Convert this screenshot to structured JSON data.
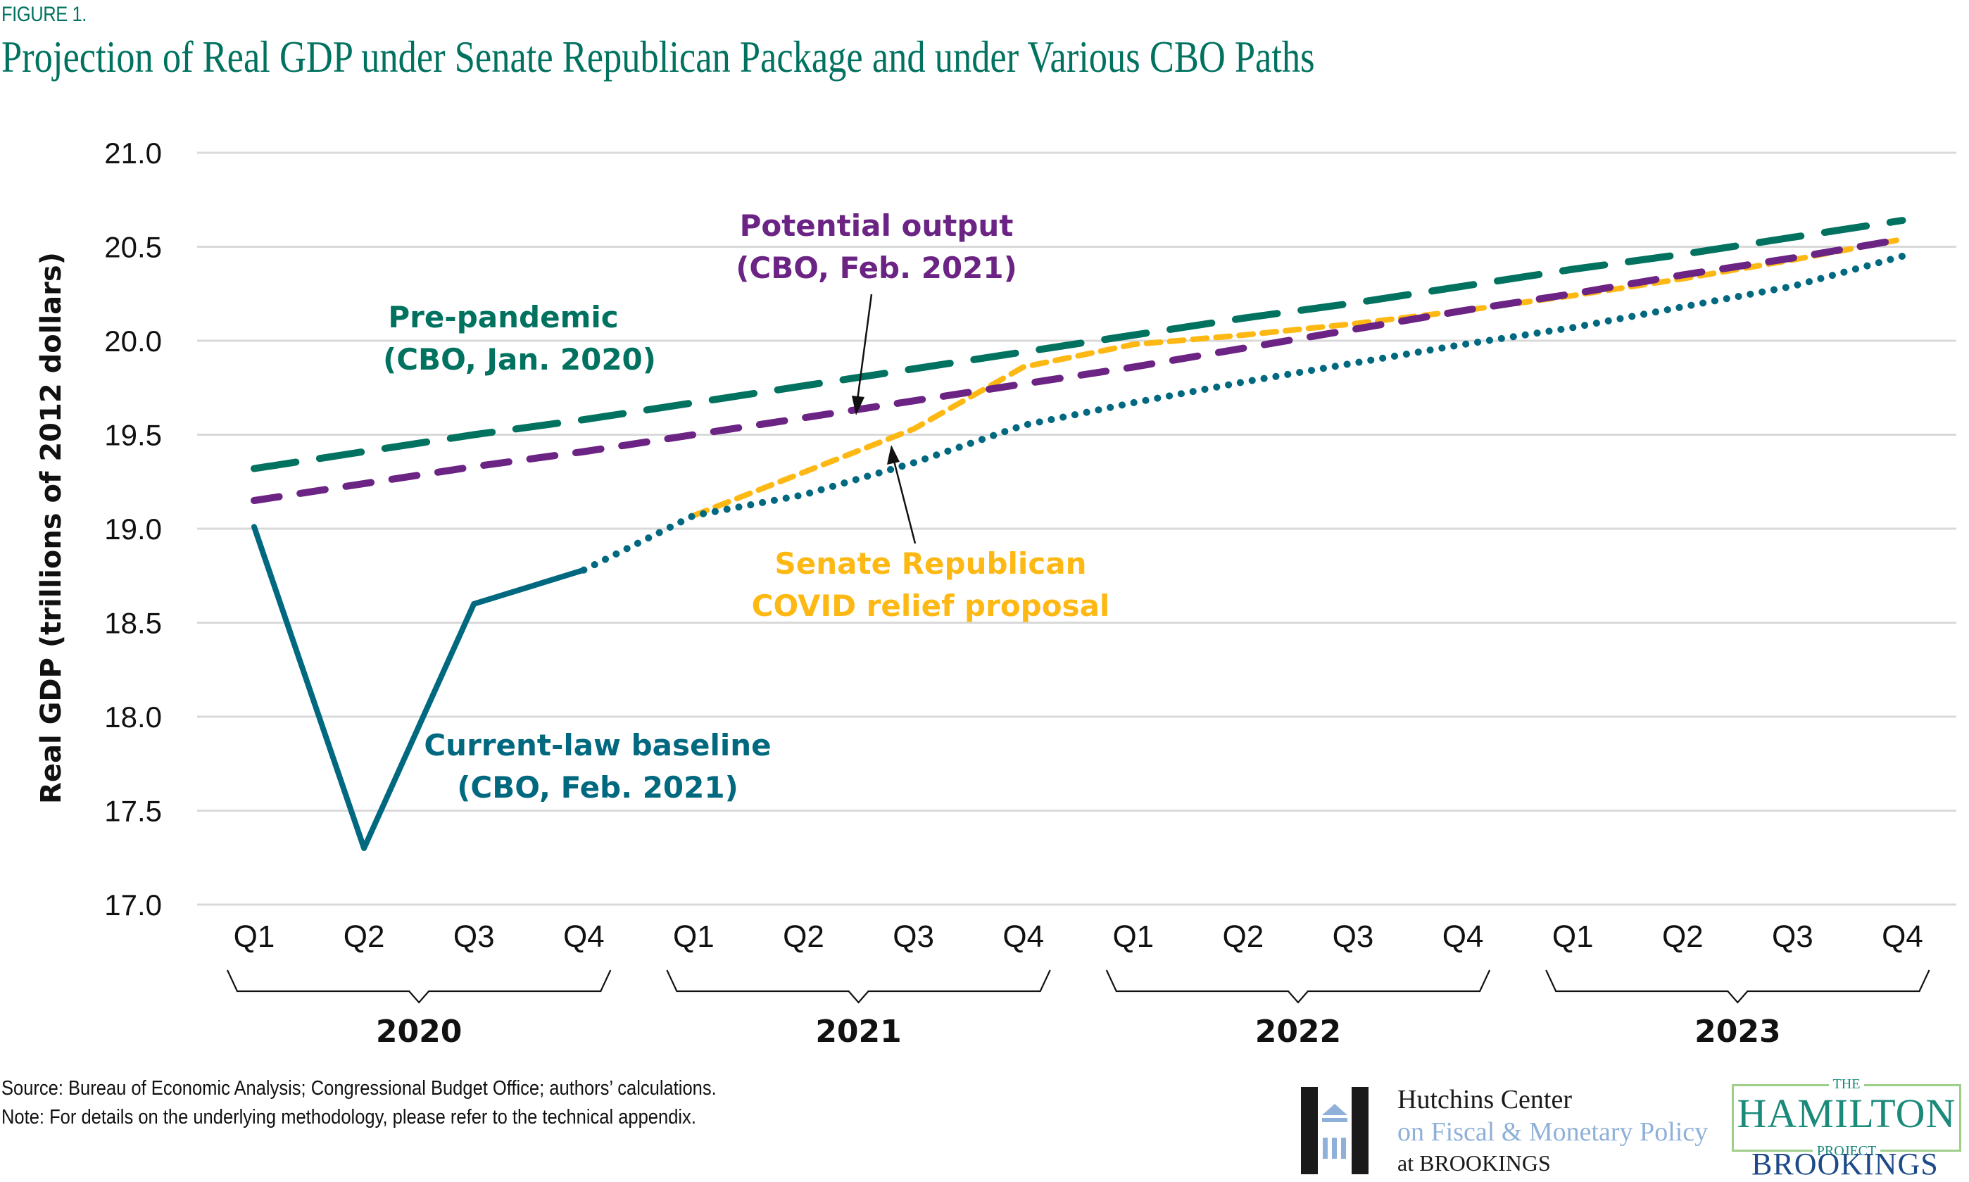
{
  "figure_label": "FIGURE 1.",
  "title": "Projection of Real GDP under Senate Republican Package and under Various CBO Paths",
  "colors": {
    "title": "#00725f",
    "pre_pandemic": "#00725f",
    "potential_output": "#6b2384",
    "current_law": "#00687f",
    "senate_republican": "#fdb813",
    "gridline": "#d9d9d9"
  },
  "chart_data": {
    "type": "line",
    "title": "Projection of Real GDP under Senate Republican Package and under Various CBO Paths",
    "xlabel": "",
    "ylabel": "Real GDP (trillions of 2012 dollars)",
    "ylim": [
      17.0,
      21.0
    ],
    "yticks": [
      "17.0",
      "17.5",
      "18.0",
      "18.5",
      "19.0",
      "19.5",
      "20.0",
      "20.5",
      "21.0"
    ],
    "grid": true,
    "x": [
      "2020Q1",
      "2020Q2",
      "2020Q3",
      "2020Q4",
      "2021Q1",
      "2021Q2",
      "2021Q3",
      "2021Q4",
      "2022Q1",
      "2022Q2",
      "2022Q3",
      "2022Q4",
      "2023Q1",
      "2023Q2",
      "2023Q3",
      "2023Q4"
    ],
    "quarter_labels": [
      "Q1",
      "Q2",
      "Q3",
      "Q4",
      "Q1",
      "Q2",
      "Q3",
      "Q4",
      "Q1",
      "Q2",
      "Q3",
      "Q4",
      "Q1",
      "Q2",
      "Q3",
      "Q4"
    ],
    "years": [
      "2020",
      "2021",
      "2022",
      "2023"
    ],
    "series": [
      {
        "name": "Pre-pandemic (CBO, Jan. 2020)",
        "style": "long-dash",
        "color": "#00725f",
        "values": [
          19.32,
          19.41,
          19.5,
          19.58,
          19.67,
          19.76,
          19.85,
          19.94,
          20.03,
          20.12,
          20.2,
          20.29,
          20.38,
          20.46,
          20.55,
          20.64
        ]
      },
      {
        "name": "Potential output (CBO, Feb. 2021)",
        "style": "dash",
        "color": "#6b2384",
        "values": [
          19.15,
          19.24,
          19.33,
          19.41,
          19.5,
          19.59,
          19.68,
          19.77,
          19.86,
          19.96,
          20.06,
          20.16,
          20.25,
          20.35,
          20.44,
          20.54
        ]
      },
      {
        "name": "Current-law baseline (CBO, Feb. 2021) - actual",
        "style": "solid",
        "color": "#00687f",
        "values": [
          19.01,
          17.3,
          18.6,
          18.78,
          null,
          null,
          null,
          null,
          null,
          null,
          null,
          null,
          null,
          null,
          null,
          null
        ]
      },
      {
        "name": "Current-law baseline (CBO, Feb. 2021) - projection",
        "style": "dotted",
        "color": "#00687f",
        "values": [
          null,
          null,
          null,
          18.78,
          19.07,
          19.18,
          19.35,
          19.55,
          19.67,
          19.78,
          19.88,
          19.98,
          20.07,
          20.18,
          20.29,
          20.45
        ]
      },
      {
        "name": "Senate Republican COVID relief proposal",
        "style": "short-dash",
        "color": "#fdb813",
        "values": [
          null,
          null,
          null,
          null,
          19.07,
          19.3,
          19.53,
          19.86,
          19.98,
          20.03,
          20.09,
          20.16,
          20.24,
          20.33,
          20.43,
          20.54
        ]
      }
    ],
    "annotations": [
      {
        "lines": [
          "Pre-pandemic",
          "(CBO, Jan. 2020)"
        ],
        "color": "#00725f"
      },
      {
        "lines": [
          "Potential output",
          "(CBO, Feb. 2021)"
        ],
        "color": "#6b2384",
        "arrow_to": "2021Q2"
      },
      {
        "lines": [
          "Senate Republican",
          "COVID relief proposal"
        ],
        "color": "#fdb813",
        "arrow_to": "2021Q3"
      },
      {
        "lines": [
          "Current-law baseline",
          "(CBO, Feb. 2021)"
        ],
        "color": "#00687f"
      }
    ]
  },
  "footer": {
    "source": "Source: Bureau of Economic Analysis; Congressional Budget Office; authors’ calculations.",
    "note": "Note: For details on the underlying methodology, please refer to the technical appendix."
  },
  "logos": {
    "hutchins": {
      "line1": "Hutchins Center",
      "line2": "on Fiscal & Monetary Policy",
      "line3": "at BROOKINGS"
    },
    "hamilton": {
      "the": "THE",
      "name": "HAMILTON",
      "project": "PROJECT",
      "brookings": "BROOKINGS"
    }
  }
}
